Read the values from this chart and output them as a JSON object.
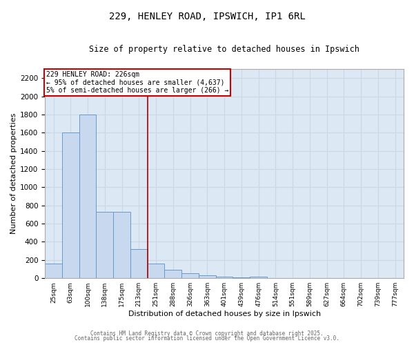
{
  "title_line1": "229, HENLEY ROAD, IPSWICH, IP1 6RL",
  "title_line2": "Size of property relative to detached houses in Ipswich",
  "xlabel": "Distribution of detached houses by size in Ipswich",
  "ylabel": "Number of detached properties",
  "categories": [
    "25sqm",
    "63sqm",
    "100sqm",
    "138sqm",
    "175sqm",
    "213sqm",
    "251sqm",
    "288sqm",
    "326sqm",
    "363sqm",
    "401sqm",
    "439sqm",
    "476sqm",
    "514sqm",
    "551sqm",
    "589sqm",
    "627sqm",
    "664sqm",
    "702sqm",
    "739sqm",
    "777sqm"
  ],
  "values": [
    160,
    1600,
    1800,
    730,
    730,
    320,
    160,
    90,
    55,
    30,
    20,
    10,
    15,
    5,
    3,
    2,
    2,
    1,
    1,
    1,
    1
  ],
  "bar_color": "#c8d8ee",
  "bar_edge_color": "#6699cc",
  "grid_color": "#c8d8e8",
  "background_color": "#dce8f4",
  "red_line_x": 5.5,
  "red_line_color": "#aa0000",
  "annotation_text": "229 HENLEY ROAD: 226sqm\n← 95% of detached houses are smaller (4,637)\n5% of semi-detached houses are larger (266) →",
  "annotation_box_color": "#cc0000",
  "ylim": [
    0,
    2300
  ],
  "yticks": [
    0,
    200,
    400,
    600,
    800,
    1000,
    1200,
    1400,
    1600,
    1800,
    2000,
    2200
  ],
  "footer_line1": "Contains HM Land Registry data © Crown copyright and database right 2025.",
  "footer_line2": "Contains public sector information licensed under the Open Government Licence v3.0."
}
